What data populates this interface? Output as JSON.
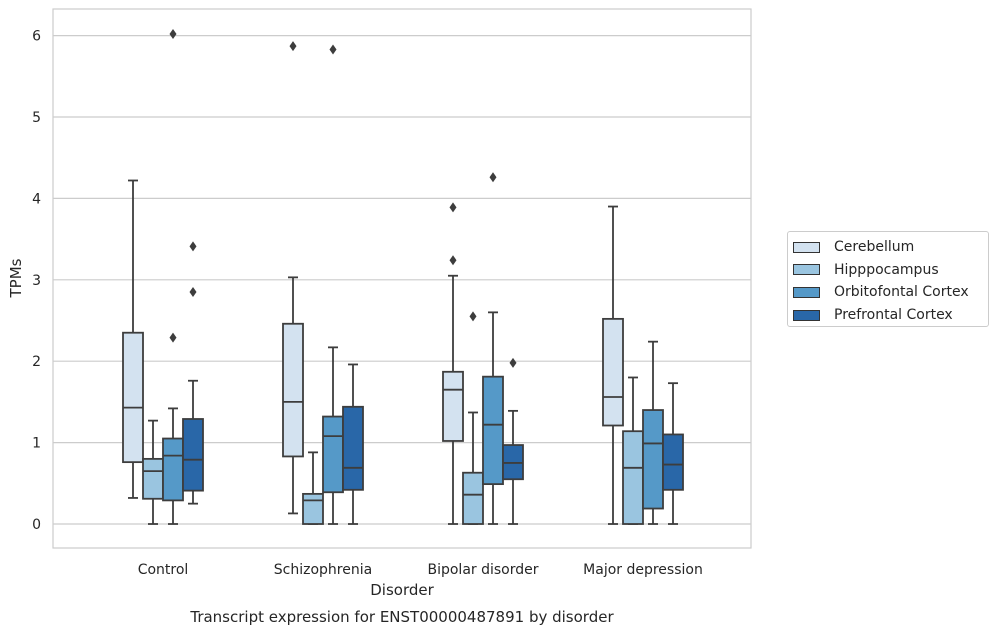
{
  "chart_data": {
    "type": "box",
    "title": "Transcript expression for ENST00000487891 by disorder",
    "xlabel": "Disorder",
    "ylabel": "TPMs",
    "ylim": [
      -0.3,
      6.35
    ],
    "yticks": [
      "0",
      "1",
      "2",
      "3",
      "4",
      "5",
      "6"
    ],
    "grid": "horizontal",
    "legend_position": "right",
    "categories": [
      "Control",
      "Schizophrenia",
      "Bipolar disorder",
      "Major depression"
    ],
    "series": [
      {
        "name": "Cerebellum",
        "color": "#d3e2f0",
        "boxes": [
          {
            "whisker_low": 0.32,
            "q1": 0.76,
            "median": 1.43,
            "q3": 2.35,
            "whisker_high": 4.22,
            "outliers": []
          },
          {
            "whisker_low": 0.13,
            "q1": 0.83,
            "median": 1.5,
            "q3": 2.46,
            "whisker_high": 3.03,
            "outliers": [
              5.87
            ]
          },
          {
            "whisker_low": 0.0,
            "q1": 1.02,
            "median": 1.65,
            "q3": 1.87,
            "whisker_high": 3.05,
            "outliers": [
              3.24,
              3.89
            ]
          },
          {
            "whisker_low": 0.0,
            "q1": 1.21,
            "median": 1.56,
            "q3": 2.52,
            "whisker_high": 3.9,
            "outliers": []
          }
        ]
      },
      {
        "name": "Hipppocampus",
        "color": "#9ac5e0",
        "boxes": [
          {
            "whisker_low": 0.0,
            "q1": 0.31,
            "median": 0.65,
            "q3": 0.8,
            "whisker_high": 1.27,
            "outliers": []
          },
          {
            "whisker_low": 0.0,
            "q1": 0.0,
            "median": 0.29,
            "q3": 0.37,
            "whisker_high": 0.88,
            "outliers": []
          },
          {
            "whisker_low": 0.0,
            "q1": 0.0,
            "median": 0.36,
            "q3": 0.63,
            "whisker_high": 1.37,
            "outliers": [
              2.55
            ]
          },
          {
            "whisker_low": 0.0,
            "q1": 0.0,
            "median": 0.69,
            "q3": 1.14,
            "whisker_high": 1.8,
            "outliers": []
          }
        ]
      },
      {
        "name": "Orbitofontal Cortex",
        "color": "#5599c8",
        "boxes": [
          {
            "whisker_low": 0.0,
            "q1": 0.29,
            "median": 0.84,
            "q3": 1.05,
            "whisker_high": 1.42,
            "outliers": [
              2.29,
              6.02
            ]
          },
          {
            "whisker_low": 0.0,
            "q1": 0.39,
            "median": 1.08,
            "q3": 1.32,
            "whisker_high": 2.17,
            "outliers": [
              5.83
            ]
          },
          {
            "whisker_low": 0.0,
            "q1": 0.49,
            "median": 1.22,
            "q3": 1.81,
            "whisker_high": 2.6,
            "outliers": [
              4.26
            ]
          },
          {
            "whisker_low": 0.0,
            "q1": 0.19,
            "median": 0.99,
            "q3": 1.4,
            "whisker_high": 2.24,
            "outliers": []
          }
        ]
      },
      {
        "name": "Prefrontal Cortex",
        "color": "#2967a8",
        "boxes": [
          {
            "whisker_low": 0.25,
            "q1": 0.41,
            "median": 0.79,
            "q3": 1.29,
            "whisker_high": 1.76,
            "outliers": [
              2.85,
              3.41
            ]
          },
          {
            "whisker_low": 0.0,
            "q1": 0.42,
            "median": 0.69,
            "q3": 1.44,
            "whisker_high": 1.96,
            "outliers": []
          },
          {
            "whisker_low": 0.0,
            "q1": 0.55,
            "median": 0.75,
            "q3": 0.97,
            "whisker_high": 1.39,
            "outliers": [
              1.98
            ]
          },
          {
            "whisker_low": 0.0,
            "q1": 0.42,
            "median": 0.73,
            "q3": 1.1,
            "whisker_high": 1.73,
            "outliers": []
          }
        ]
      }
    ]
  }
}
